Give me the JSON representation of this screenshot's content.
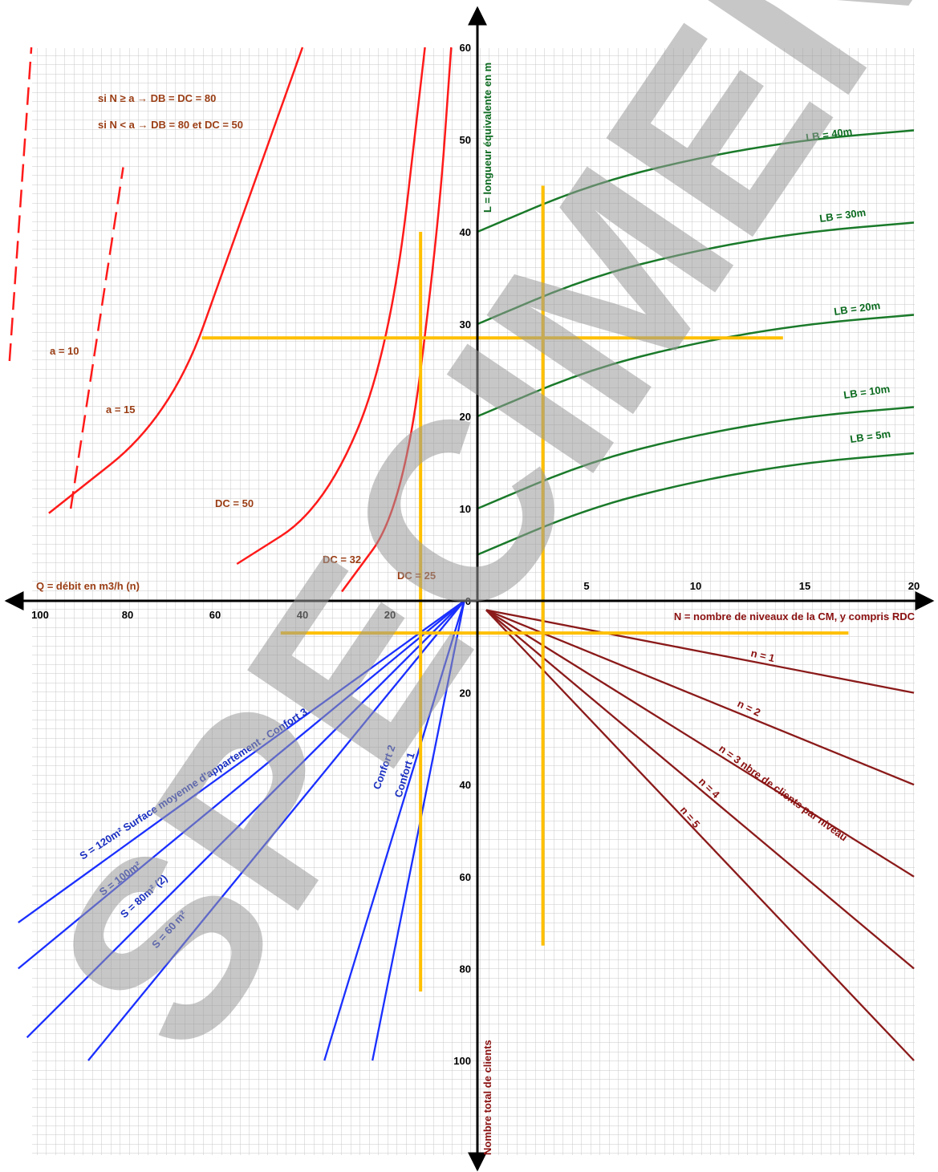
{
  "colors": {
    "grid": "#c8c8c8",
    "axis": "#000000",
    "red": "#ff1a1a",
    "green": "#1a7a2a",
    "blue": "#1a2fff",
    "maroon": "#8b1a1a",
    "yellow": "#ffc000",
    "watermark": "#9a9a9a"
  },
  "chart_data": {
    "type": "line",
    "quadrants": {
      "top_left": {
        "title": "Q = débit en m3/h (n)",
        "x_ticks": [
          "100",
          "80",
          "60",
          "40",
          "20"
        ],
        "y_ticks": [
          "0",
          "10",
          "20",
          "30",
          "40",
          "50",
          "60"
        ],
        "rules": [
          "si N ≥ a → DB = DC = 80",
          "si N < a → DB = 80 et DC = 50"
        ],
        "series": [
          {
            "name": "a = 10",
            "style": "dashed",
            "points": [
              [
                107,
                26
              ],
              [
                102,
                60
              ]
            ]
          },
          {
            "name": "a = 15",
            "style": "dashed",
            "points": [
              [
                93,
                10
              ],
              [
                81,
                47
              ]
            ]
          },
          {
            "name": "DC = 50",
            "points": [
              [
                98,
                9.5
              ],
              [
                70,
                20
              ],
              [
                55,
                40
              ],
              [
                40,
                60
              ]
            ]
          },
          {
            "name": "DC = 32",
            "points": [
              [
                55,
                4
              ],
              [
                35,
                10
              ],
              [
                20,
                27
              ],
              [
                12,
                60
              ]
            ]
          },
          {
            "name": "DC = 25",
            "points": [
              [
                31,
                1
              ],
              [
                17,
                10
              ],
              [
                9,
                40
              ],
              [
                6,
                60
              ]
            ]
          }
        ]
      },
      "top_right": {
        "ylabel": "L = longueur équivalente en m",
        "x_ticks": [
          "5",
          "10",
          "15",
          "20"
        ],
        "series": [
          {
            "name": "LB = 40m",
            "points": [
              [
                0,
                40
              ],
              [
                5,
                45
              ],
              [
                10,
                48
              ],
              [
                15,
                50
              ],
              [
                20,
                51
              ]
            ]
          },
          {
            "name": "LB = 30m",
            "points": [
              [
                0,
                30
              ],
              [
                5,
                35
              ],
              [
                10,
                38
              ],
              [
                15,
                40
              ],
              [
                20,
                41
              ]
            ]
          },
          {
            "name": "LB = 20m",
            "points": [
              [
                0,
                20
              ],
              [
                5,
                25
              ],
              [
                10,
                28
              ],
              [
                15,
                30
              ],
              [
                20,
                31
              ]
            ]
          },
          {
            "name": "LB = 10m",
            "points": [
              [
                0,
                10
              ],
              [
                5,
                15
              ],
              [
                10,
                18
              ],
              [
                15,
                20
              ],
              [
                20,
                21
              ]
            ]
          },
          {
            "name": "LB = 5m",
            "points": [
              [
                0,
                5
              ],
              [
                5,
                10
              ],
              [
                10,
                13
              ],
              [
                15,
                15
              ],
              [
                20,
                16
              ]
            ]
          }
        ]
      },
      "bottom_right": {
        "xlabel": "N = nombre de niveaux de la CM, y compris RDC",
        "annotation": "nbre de clients par niveau",
        "y_ticks": [
          "20",
          "40",
          "60",
          "80",
          "100"
        ],
        "series": [
          {
            "name": "n = 1",
            "points": [
              [
                0,
                0
              ],
              [
                20,
                20
              ]
            ]
          },
          {
            "name": "n = 2",
            "points": [
              [
                0,
                0
              ],
              [
                20,
                40
              ]
            ]
          },
          {
            "name": "n = 3",
            "points": [
              [
                0,
                0
              ],
              [
                20,
                60
              ]
            ]
          },
          {
            "name": "n = 4",
            "points": [
              [
                0,
                0
              ],
              [
                20,
                80
              ]
            ]
          },
          {
            "name": "n = 5",
            "points": [
              [
                0,
                0
              ],
              [
                20,
                100
              ]
            ]
          }
        ]
      },
      "bottom_left": {
        "ylabel": "Nombre total de clients",
        "title": "Surface moyenne d'appartement  - Confort 3",
        "series": [
          {
            "name": "S = 120m²",
            "points": [
              [
                3,
                0
              ],
              [
                105,
                70
              ]
            ]
          },
          {
            "name": "S = 100m²",
            "points": [
              [
                3,
                0
              ],
              [
                105,
                80
              ]
            ]
          },
          {
            "name": "S = 80m² (2)",
            "points": [
              [
                3,
                0
              ],
              [
                103,
                95
              ]
            ]
          },
          {
            "name": "S = 60 m²",
            "points": [
              [
                3,
                0
              ],
              [
                89,
                100
              ]
            ]
          },
          {
            "name": "Confort 2",
            "points": [
              [
                3,
                0
              ],
              [
                35,
                100
              ]
            ]
          },
          {
            "name": "Confort 1",
            "points": [
              [
                3,
                0
              ],
              [
                24,
                100
              ]
            ]
          }
        ]
      }
    },
    "construction_lines": {
      "horizontal": [
        {
          "y_top": 28.5,
          "from_q": 63,
          "to_n": 14
        },
        {
          "y_bottom": 7,
          "from_q": 45,
          "to_n": 17
        }
      ],
      "vertical": [
        {
          "x_q": 13,
          "from_top": 40,
          "to_bottom": 85
        },
        {
          "x_n": 3,
          "from_top": 45,
          "to_bottom": 75
        }
      ]
    }
  },
  "labels": {
    "a10": "a = 10",
    "a15": "a = 15",
    "dc50": "DC = 50",
    "dc32": "DC = 32",
    "dc25": "DC = 25",
    "lb40": "LB = 40m",
    "lb30": "LB = 30m",
    "lb20": "LB = 20m",
    "lb10": "LB = 10m",
    "lb5": "LB = 5m",
    "n1": "n = 1",
    "n2": "n = 2",
    "n3": "n = 3 nbre de clients par niveau",
    "n4": "n = 4",
    "n5": "n = 5",
    "s120": "S = 120m²  Surface moyenne d'appartement  - Confort 3",
    "s100": "S = 100m²",
    "s80": "S = 80m²  (2)",
    "s60": "S = 60 m²",
    "confort2": "Confort 2",
    "confort1": "Confort 1"
  },
  "watermark": "SPECIMEN"
}
